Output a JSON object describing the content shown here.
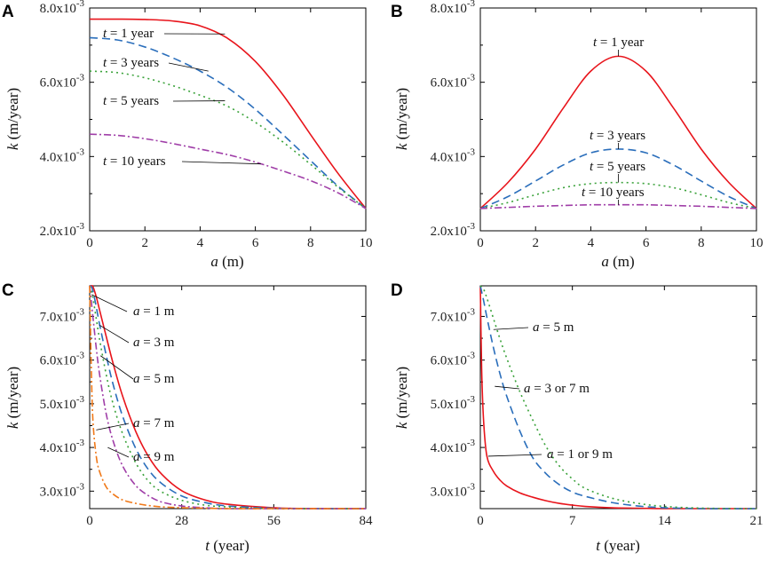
{
  "chart_data": [
    {
      "panel": "A",
      "type": "line",
      "xlabel": {
        "var": "a",
        "unit": " (m)"
      },
      "ylabel": {
        "var": "k",
        "unit": " (m/year)"
      },
      "xlim": [
        0,
        10
      ],
      "ylim": [
        0.002,
        0.008
      ],
      "xticks": [
        0,
        2,
        4,
        6,
        8,
        10
      ],
      "xtick_labels": [
        "0",
        "2",
        "4",
        "6",
        "8",
        "10"
      ],
      "yticks": [
        0.002,
        0.004,
        0.006,
        0.008
      ],
      "ytick_labels": [
        {
          "mant": "2.0x10",
          "exp": "-3"
        },
        {
          "mant": "4.0x10",
          "exp": "-3"
        },
        {
          "mant": "6.0x10",
          "exp": "-3"
        },
        {
          "mant": "8.0x10",
          "exp": "-3"
        }
      ],
      "series": [
        {
          "name": "t = 1 year",
          "color": "#e8141b",
          "dash": "",
          "x": [
            0,
            1,
            2,
            3,
            4,
            5,
            6,
            7,
            8,
            9,
            10
          ],
          "y": [
            0.0077,
            0.0077,
            0.00769,
            0.00765,
            0.00752,
            0.00718,
            0.00656,
            0.00566,
            0.00459,
            0.00354,
            0.0026
          ]
        },
        {
          "name": "t = 3 years",
          "color": "#2a6ebb",
          "dash": "9,5",
          "x": [
            0,
            1,
            2,
            3,
            4,
            5,
            6,
            7,
            8,
            9,
            10
          ],
          "y": [
            0.0072,
            0.00714,
            0.00695,
            0.00666,
            0.0063,
            0.00585,
            0.00527,
            0.00459,
            0.00389,
            0.0032,
            0.0026
          ]
        },
        {
          "name": "t = 5 years",
          "color": "#3aa23a",
          "dash": "2,4",
          "x": [
            0,
            1,
            2,
            3,
            4,
            5,
            6,
            7,
            8,
            9,
            10
          ],
          "y": [
            0.0063,
            0.00626,
            0.00612,
            0.00591,
            0.00565,
            0.00535,
            0.00492,
            0.00439,
            0.00379,
            0.00317,
            0.0026
          ]
        },
        {
          "name": "t = 10 years",
          "color": "#a03fa8",
          "dash": "8,3,2,3",
          "x": [
            0,
            1,
            2,
            3,
            4,
            5,
            6,
            7,
            8,
            9,
            10
          ],
          "y": [
            0.0046,
            0.00457,
            0.00448,
            0.00435,
            0.0042,
            0.00405,
            0.00385,
            0.00361,
            0.00335,
            0.00302,
            0.0026
          ]
        }
      ],
      "annotations": [
        {
          "var": "t",
          "text": " = 1 year",
          "target": [
            4.9,
            0.0073
          ]
        },
        {
          "var": "t",
          "text": " = 3 years",
          "target": [
            4.3,
            0.0063
          ]
        },
        {
          "var": "t",
          "text": " = 5 years",
          "target": [
            4.9,
            0.0055
          ]
        },
        {
          "var": "t",
          "text": " = 10 years",
          "target": [
            6.2,
            0.0038
          ]
        }
      ]
    },
    {
      "panel": "B",
      "type": "line",
      "xlabel": {
        "var": "a",
        "unit": " (m)"
      },
      "ylabel": {
        "var": "k",
        "unit": " (m/year)"
      },
      "xlim": [
        0,
        10
      ],
      "ylim": [
        0.002,
        0.008
      ],
      "xticks": [
        0,
        2,
        4,
        6,
        8,
        10
      ],
      "xtick_labels": [
        "0",
        "2",
        "4",
        "6",
        "8",
        "10"
      ],
      "yticks": [
        0.002,
        0.004,
        0.006,
        0.008
      ],
      "ytick_labels": [
        {
          "mant": "2.0x10",
          "exp": "-3"
        },
        {
          "mant": "4.0x10",
          "exp": "-3"
        },
        {
          "mant": "6.0x10",
          "exp": "-3"
        },
        {
          "mant": "8.0x10",
          "exp": "-3"
        }
      ],
      "series": [
        {
          "name": "t = 1 year",
          "color": "#e8141b",
          "dash": "",
          "x": [
            0,
            1,
            2,
            3,
            4,
            5,
            6,
            7,
            8,
            9,
            10
          ],
          "y": [
            0.0026,
            0.0033,
            0.0042,
            0.0053,
            0.0063,
            0.0067,
            0.0063,
            0.0053,
            0.0042,
            0.0033,
            0.0026
          ]
        },
        {
          "name": "t = 3 years",
          "color": "#2a6ebb",
          "dash": "9,5",
          "x": [
            0,
            1,
            2,
            3,
            4,
            5,
            6,
            7,
            8,
            9,
            10
          ],
          "y": [
            0.0026,
            0.00292,
            0.00334,
            0.00377,
            0.0041,
            0.0042,
            0.0041,
            0.00377,
            0.00334,
            0.00292,
            0.0026
          ]
        },
        {
          "name": "t = 5 years",
          "color": "#3aa23a",
          "dash": "2,4",
          "x": [
            0,
            1,
            2,
            3,
            4,
            5,
            6,
            7,
            8,
            9,
            10
          ],
          "y": [
            0.0026,
            0.00276,
            0.00297,
            0.00316,
            0.00327,
            0.0033,
            0.00327,
            0.00316,
            0.00297,
            0.00276,
            0.0026
          ]
        },
        {
          "name": "t = 10 years",
          "color": "#a03fa8",
          "dash": "8,3,2,3",
          "x": [
            0,
            1,
            2,
            3,
            4,
            5,
            6,
            7,
            8,
            9,
            10
          ],
          "y": [
            0.0026,
            0.00263,
            0.00266,
            0.00268,
            0.0027,
            0.0027,
            0.0027,
            0.00268,
            0.00266,
            0.00263,
            0.0026
          ]
        }
      ],
      "annotations": [
        {
          "var": "t",
          "text": " = 1 year",
          "target": [
            5.0,
            0.0067
          ]
        },
        {
          "var": "t",
          "text": " = 3 years",
          "target": [
            5.0,
            0.0042
          ]
        },
        {
          "var": "t",
          "text": " = 5 years",
          "target": [
            5.0,
            0.0033
          ]
        },
        {
          "var": "t",
          "text": " = 10 years",
          "target": [
            5.0,
            0.0027
          ]
        }
      ]
    },
    {
      "panel": "C",
      "type": "line",
      "xlabel": {
        "var": "t",
        "unit": " (year)"
      },
      "ylabel": {
        "var": "k",
        "unit": " (m/year)"
      },
      "xlim": [
        0,
        84
      ],
      "ylim": [
        0.0026,
        0.0077
      ],
      "xticks": [
        0,
        28,
        56,
        84
      ],
      "xtick_labels": [
        "0",
        "28",
        "56",
        "84"
      ],
      "yticks": [
        0.003,
        0.004,
        0.005,
        0.006,
        0.007
      ],
      "ytick_labels": [
        {
          "mant": "3.0x10",
          "exp": "-3"
        },
        {
          "mant": "4.0x10",
          "exp": "-3"
        },
        {
          "mant": "5.0x10",
          "exp": "-3"
        },
        {
          "mant": "6.0x10",
          "exp": "-3"
        },
        {
          "mant": "7.0x10",
          "exp": "-3"
        }
      ],
      "series": [
        {
          "name": "a = 1 m",
          "color": "#e8141b",
          "dash": "",
          "x": [
            0,
            0.5,
            1,
            2,
            3,
            5,
            7,
            10,
            14,
            18,
            22,
            28,
            35,
            42,
            56,
            70,
            84
          ],
          "y": [
            0.0077,
            0.0077,
            0.00768,
            0.00745,
            0.00715,
            0.00655,
            0.00596,
            0.00518,
            0.00437,
            0.00378,
            0.00338,
            0.00301,
            0.0028,
            0.0027,
            0.00262,
            0.0026,
            0.0026
          ]
        },
        {
          "name": "a = 3 m",
          "color": "#2a6ebb",
          "dash": "9,5",
          "x": [
            0,
            0.5,
            1,
            2,
            3,
            5,
            7,
            10,
            14,
            18,
            22,
            28,
            35,
            42,
            56,
            70,
            84
          ],
          "y": [
            0.0077,
            0.00768,
            0.00758,
            0.00722,
            0.00682,
            0.00612,
            0.00548,
            0.00472,
            0.00398,
            0.00348,
            0.00317,
            0.00289,
            0.00274,
            0.00266,
            0.00261,
            0.0026,
            0.0026
          ]
        },
        {
          "name": "a = 5 m",
          "color": "#3aa23a",
          "dash": "2,4",
          "x": [
            0,
            0.5,
            1,
            2,
            3,
            5,
            7,
            10,
            14,
            18,
            22,
            28,
            35,
            42,
            56,
            70,
            84
          ],
          "y": [
            0.0077,
            0.0076,
            0.00742,
            0.00695,
            0.00648,
            0.00568,
            0.00503,
            0.00432,
            0.00365,
            0.00322,
            0.00298,
            0.00279,
            0.00268,
            0.00264,
            0.0026,
            0.0026,
            0.0026
          ]
        },
        {
          "name": "a = 7 m",
          "color": "#a03fa8",
          "dash": "8,3,2,3",
          "x": [
            0,
            0.5,
            1,
            2,
            3,
            5,
            7,
            10,
            14,
            18,
            22,
            28,
            35,
            42,
            56,
            70,
            84
          ],
          "y": [
            0.0077,
            0.00735,
            0.00698,
            0.00628,
            0.00568,
            0.00478,
            0.00418,
            0.00358,
            0.00313,
            0.00289,
            0.00275,
            0.00266,
            0.00262,
            0.0026,
            0.0026,
            0.0026,
            0.0026
          ]
        },
        {
          "name": "a = 9 m",
          "color": "#f07818",
          "dash": "8,3,2,3",
          "x": [
            0,
            0.5,
            1,
            2,
            3,
            5,
            7,
            10,
            14,
            18,
            22,
            28,
            35,
            42,
            56,
            70,
            84
          ],
          "y": [
            0.0077,
            0.0058,
            0.0046,
            0.0038,
            0.00345,
            0.0031,
            0.00294,
            0.0028,
            0.00272,
            0.00267,
            0.00264,
            0.00262,
            0.00261,
            0.0026,
            0.0026,
            0.0026,
            0.0026
          ]
        }
      ],
      "annotations": [
        {
          "var": "a",
          "text": " = 1 m",
          "target": [
            0.6,
            0.0075
          ]
        },
        {
          "var": "a",
          "text": " = 3 m",
          "target": [
            3.0,
            0.0068
          ]
        },
        {
          "var": "a",
          "text": " = 5 m",
          "target": [
            3.3,
            0.0061
          ]
        },
        {
          "var": "a",
          "text": " = 7 m",
          "target": [
            2.0,
            0.0044
          ]
        },
        {
          "var": "a",
          "text": " = 9 m",
          "target": [
            5.5,
            0.004
          ]
        }
      ]
    },
    {
      "panel": "D",
      "type": "line",
      "xlabel": {
        "var": "t",
        "unit": " (year)"
      },
      "ylabel": {
        "var": "k",
        "unit": " (m/year)"
      },
      "xlim": [
        0,
        21
      ],
      "ylim": [
        0.0026,
        0.0077
      ],
      "xticks": [
        0,
        7,
        14,
        21
      ],
      "xtick_labels": [
        "0",
        "7",
        "14",
        "21"
      ],
      "yticks": [
        0.003,
        0.004,
        0.005,
        0.006,
        0.007
      ],
      "ytick_labels": [
        {
          "mant": "3.0x10",
          "exp": "-3"
        },
        {
          "mant": "4.0x10",
          "exp": "-3"
        },
        {
          "mant": "5.0x10",
          "exp": "-3"
        },
        {
          "mant": "6.0x10",
          "exp": "-3"
        },
        {
          "mant": "7.0x10",
          "exp": "-3"
        }
      ],
      "series": [
        {
          "name": "a = 1 or 9 m",
          "color": "#e8141b",
          "dash": "",
          "x": [
            0,
            0.1,
            0.25,
            0.5,
            1,
            1.5,
            2,
            3,
            4,
            5,
            6,
            7,
            8,
            10,
            12,
            14,
            17,
            21
          ],
          "y": [
            0.0077,
            0.0058,
            0.0046,
            0.0038,
            0.00345,
            0.00325,
            0.00312,
            0.00296,
            0.00286,
            0.00278,
            0.00272,
            0.00268,
            0.00265,
            0.00262,
            0.00261,
            0.0026,
            0.0026,
            0.0026
          ]
        },
        {
          "name": "a = 3 or 7 m",
          "color": "#2a6ebb",
          "dash": "9,5",
          "x": [
            0,
            0.25,
            0.5,
            1,
            1.5,
            2,
            3,
            4,
            5,
            6,
            7,
            8,
            10,
            12,
            14,
            17,
            21
          ],
          "y": [
            0.0077,
            0.00736,
            0.00698,
            0.00628,
            0.00568,
            0.00518,
            0.00438,
            0.00376,
            0.0034,
            0.00315,
            0.00298,
            0.00288,
            0.00274,
            0.00266,
            0.00262,
            0.0026,
            0.0026
          ]
        },
        {
          "name": "a = 5 m",
          "color": "#3aa23a",
          "dash": "2,4",
          "x": [
            0,
            0.25,
            0.5,
            1,
            1.5,
            2,
            3,
            4,
            5,
            6,
            7,
            8,
            10,
            12,
            14,
            17,
            21
          ],
          "y": [
            0.0077,
            0.00762,
            0.00742,
            0.00695,
            0.00648,
            0.00605,
            0.00528,
            0.00462,
            0.00402,
            0.00358,
            0.00328,
            0.00306,
            0.00284,
            0.00272,
            0.00265,
            0.00261,
            0.0026
          ]
        }
      ],
      "annotations": [
        {
          "var": "a",
          "text": " = 5 m",
          "target": [
            1.0,
            0.0067
          ]
        },
        {
          "var": "a",
          "text": " = 3 or 7 m",
          "target": [
            1.1,
            0.0054
          ]
        },
        {
          "var": "a",
          "text": " = 1 or 9 m",
          "target": [
            0.6,
            0.0038
          ]
        }
      ]
    }
  ]
}
